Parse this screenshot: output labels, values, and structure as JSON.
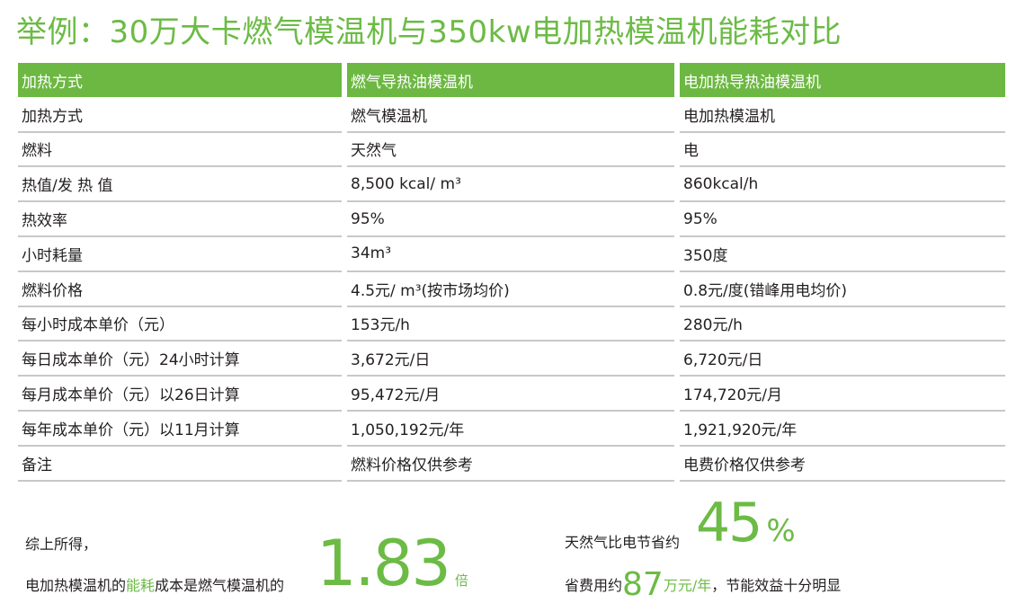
{
  "title": "举例：30万大卡燃气模温机与350kw电加热模温机能耗对比",
  "colors": {
    "accent": "#6cb842"
  },
  "table": {
    "headers": [
      "加热方式",
      "燃气导热油模温机",
      "电加热导热油模温机"
    ],
    "rows": [
      [
        "加热方式",
        "燃气模温机",
        "电加热模温机"
      ],
      [
        "燃料",
        "天然气",
        "电"
      ],
      [
        "热值/发 热 值",
        "8,500 kcal/ m³",
        "860kcal/h"
      ],
      [
        "热效率",
        "95%",
        "95%"
      ],
      [
        "小时耗量",
        "34m³",
        "350度"
      ],
      [
        "燃料价格",
        "4.5元/ m³(按市场均价)",
        "0.8元/度(错峰用电均价)"
      ],
      [
        "每小时成本单价（元）",
        "153元/h",
        "280元/h"
      ],
      [
        "每日成本单价（元）24小时计算",
        "3,672元/日",
        "6,720元/日"
      ],
      [
        "每月成本单价（元）以26日计算",
        "95,472元/月",
        "174,720元/月"
      ],
      [
        "每年成本单价（元）以11月计算",
        "1,050,192元/年",
        "1,921,920元/年"
      ],
      [
        "备注",
        "燃料价格仅供参考",
        "电费价格仅供参考"
      ]
    ]
  },
  "summary": {
    "line1": "综上所得，",
    "line2a": "电加热模温机的",
    "line2b": "能耗",
    "line2c": "成本是燃气模温机的",
    "ratio": "1.83",
    "ratio_unit": "倍",
    "save_pre": "天然气比电节省约",
    "save_pct": "45",
    "pct_sign": "%",
    "cost_pre": "省费用约",
    "cost_val": "87",
    "cost_unit": "万元/年",
    "cost_post": "，节能效益十分明显"
  }
}
